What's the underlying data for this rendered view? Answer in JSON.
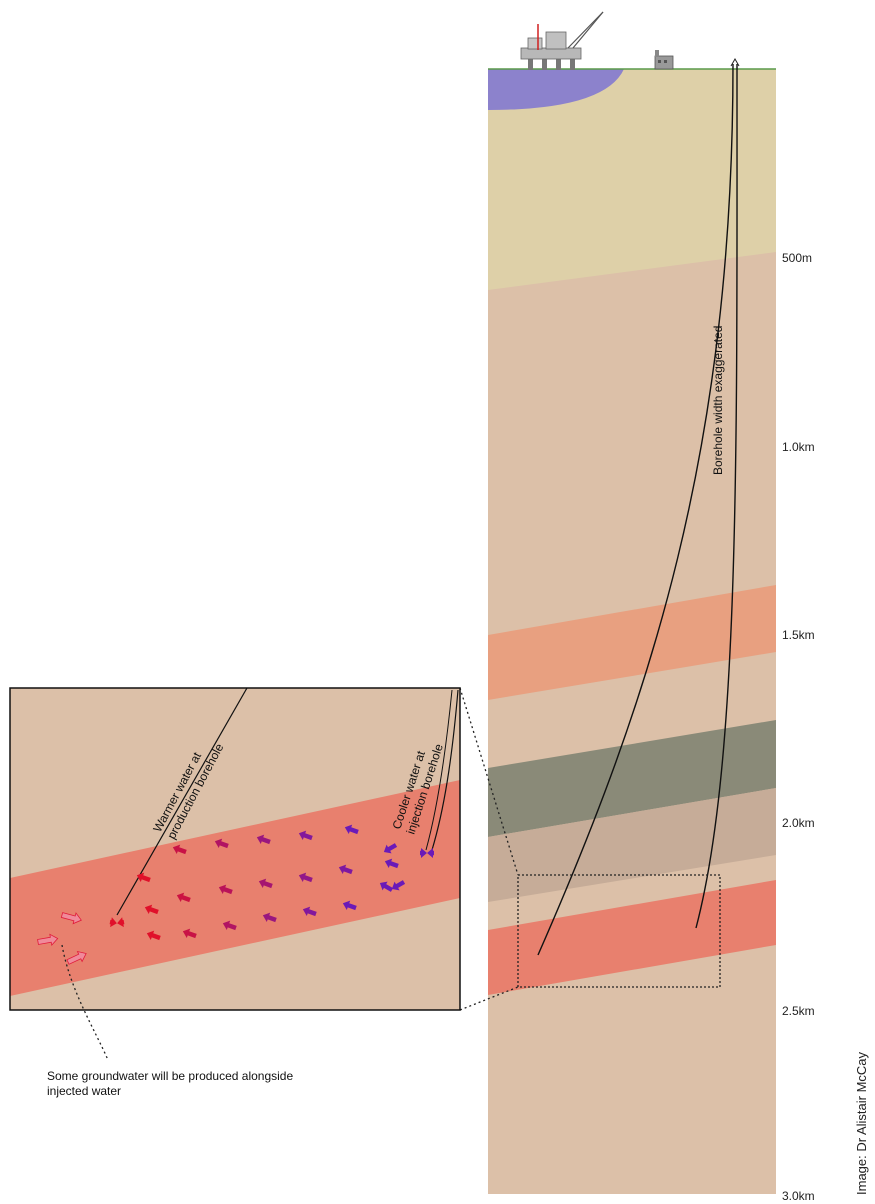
{
  "depth_scale": {
    "labels": [
      "500m",
      "1.0km",
      "1.5km",
      "2.0km",
      "2.5km",
      "3.0km"
    ]
  },
  "annotations": {
    "borehole_note": "Borehole width exaggerated",
    "warm_line1": "Warmer water at",
    "warm_line2": "production borehole",
    "cool_line1": "Cooler water at",
    "cool_line2": "injection borehole",
    "groundwater_line1": "Some groundwater will be produced alongside",
    "groundwater_line2": "injected water"
  },
  "credit": "Image: Dr Alistair McCay",
  "colors": {
    "sea": "#8c82cc",
    "surface_layer": "#ded0a8",
    "rock": "#dcc0a8",
    "orange_layer": "#e8a080",
    "grey_layer": "#8a8a78",
    "aquifer": "#e8806e",
    "warm_arrow": "#e0102a",
    "cool_arrow": "#6a1ab8"
  }
}
